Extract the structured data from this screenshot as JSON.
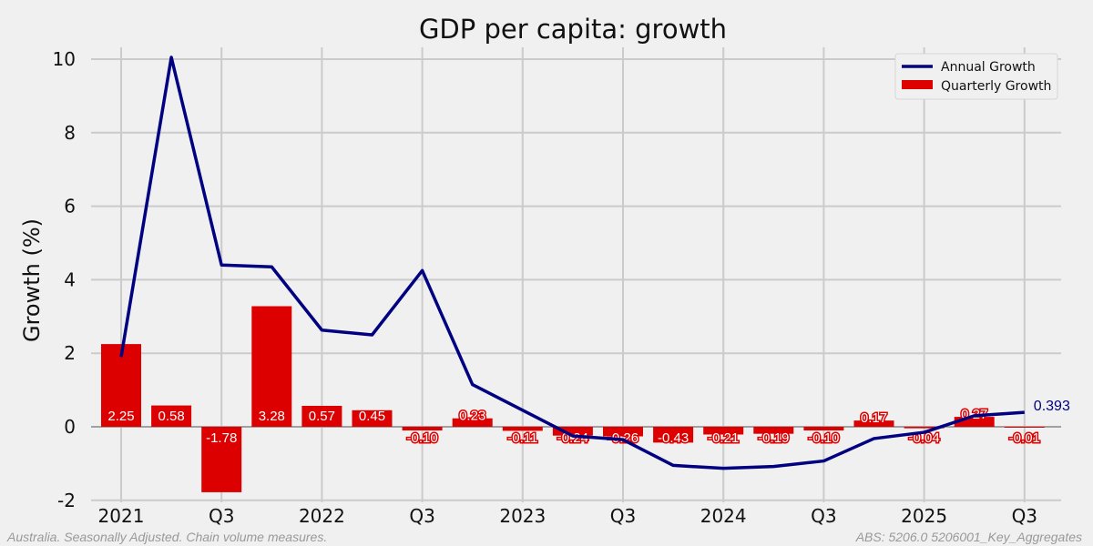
{
  "chart_data": {
    "type": "bar+line",
    "title": "GDP per capita: growth",
    "xlabel": "",
    "ylabel": "Growth (%)",
    "ylim": [
      -2,
      10.5
    ],
    "yticks": [
      -2,
      0,
      2,
      4,
      6,
      8,
      10
    ],
    "grid": true,
    "legend_position": "top-right",
    "periods": [
      "2021 Q1",
      "2021 Q2",
      "2021 Q3",
      "2021 Q4",
      "2022 Q1",
      "2022 Q2",
      "2022 Q3",
      "2022 Q4",
      "2023 Q1",
      "2023 Q2",
      "2023 Q3",
      "2023 Q4",
      "2024 Q1",
      "2024 Q2",
      "2024 Q3",
      "2024 Q4",
      "2025 Q1",
      "2025 Q2",
      "2025 Q3"
    ],
    "xtick_labels": [
      "2021",
      "",
      "Q3",
      "",
      "2022",
      "",
      "Q3",
      "",
      "2023",
      "",
      "Q3",
      "",
      "2024",
      "",
      "Q3",
      "",
      "2025",
      "",
      "Q3"
    ],
    "series": [
      {
        "name": "Annual Growth",
        "type": "line",
        "color": "#000080",
        "values": [
          1.9,
          10.05,
          4.4,
          4.35,
          2.63,
          2.5,
          4.25,
          1.15,
          0.45,
          -0.25,
          -0.35,
          -1.05,
          -1.13,
          -1.08,
          -0.93,
          -0.32,
          -0.15,
          0.3,
          0.393
        ],
        "end_label": "0.393"
      },
      {
        "name": "Quarterly Growth",
        "type": "bar",
        "color": "#dd0000",
        "values": [
          2.25,
          0.58,
          -1.78,
          3.28,
          0.57,
          0.45,
          -0.1,
          0.23,
          -0.11,
          -0.24,
          -0.26,
          -0.43,
          -0.21,
          -0.19,
          -0.1,
          0.17,
          -0.04,
          0.27,
          -0.01
        ],
        "labels": [
          "2.25",
          "0.58",
          "-1.78",
          "3.28",
          "0.57",
          "0.45",
          "-0.10",
          "0.23",
          "-0.11",
          "-0.24",
          "-0.26",
          "-0.43",
          "-0.21",
          "-0.19",
          "-0.10",
          "0.17",
          "-0.04",
          "0.27",
          "-0.01"
        ]
      }
    ]
  },
  "footnotes": {
    "left": "Australia. Seasonally Adjusted. Chain volume measures.",
    "right": "ABS: 5206.0 5206001_Key_Aggregates"
  },
  "colors": {
    "background": "#f0f0f0",
    "grid": "#cbcbcb",
    "zero_line": "#888888"
  }
}
